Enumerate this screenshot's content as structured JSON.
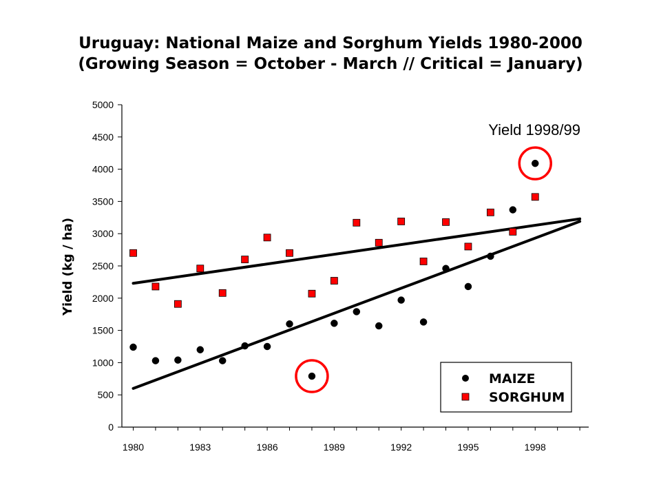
{
  "chart_data": {
    "type": "scatter",
    "title": "Uruguay:  National Maize and Sorghum Yields 1980-2000",
    "subtitle": "(Growing Season = October - March //  Critical = January)",
    "xlabel": "",
    "ylabel": "Yield (kg / ha)",
    "xlim": [
      1979.5,
      2000
    ],
    "ylim": [
      0,
      5000
    ],
    "x_ticks": [
      1980,
      1983,
      1986,
      1989,
      1992,
      1995,
      1998
    ],
    "y_ticks": [
      0,
      500,
      1000,
      1500,
      2000,
      2500,
      3000,
      3500,
      4000,
      4500,
      5000
    ],
    "legend_position": "bottom-right",
    "series": [
      {
        "name": "MAIZE",
        "marker": "circle",
        "color": "#000000",
        "x": [
          1980,
          1981,
          1982,
          1983,
          1984,
          1985,
          1986,
          1987,
          1988,
          1989,
          1990,
          1991,
          1992,
          1993,
          1994,
          1995,
          1996,
          1997,
          1998
        ],
        "y": [
          1240,
          1030,
          1040,
          1200,
          1030,
          1260,
          1250,
          1600,
          790,
          1610,
          1790,
          1570,
          1970,
          1630,
          2460,
          2180,
          2650,
          3370,
          4090
        ]
      },
      {
        "name": "SORGHUM",
        "marker": "square",
        "color": "#ff0000",
        "x": [
          1980,
          1981,
          1982,
          1983,
          1984,
          1985,
          1986,
          1987,
          1988,
          1989,
          1990,
          1991,
          1992,
          1993,
          1994,
          1995,
          1996,
          1997,
          1998
        ],
        "y": [
          2700,
          2180,
          1910,
          2460,
          2080,
          2600,
          2940,
          2700,
          2070,
          2270,
          3170,
          2860,
          3190,
          2570,
          3180,
          2800,
          3330,
          3030,
          3570
        ]
      }
    ],
    "trend_lines": [
      {
        "series": "MAIZE",
        "x": [
          1980,
          2000
        ],
        "y": [
          600,
          3190
        ]
      },
      {
        "series": "SORGHUM",
        "x": [
          1980,
          2000
        ],
        "y": [
          2230,
          3230
        ]
      }
    ],
    "highlights": [
      {
        "x": 1988,
        "y": 790,
        "color": "#ff0000"
      },
      {
        "x": 1998,
        "y": 4090,
        "color": "#ff0000"
      }
    ],
    "annotation": "Yield 1998/99"
  }
}
